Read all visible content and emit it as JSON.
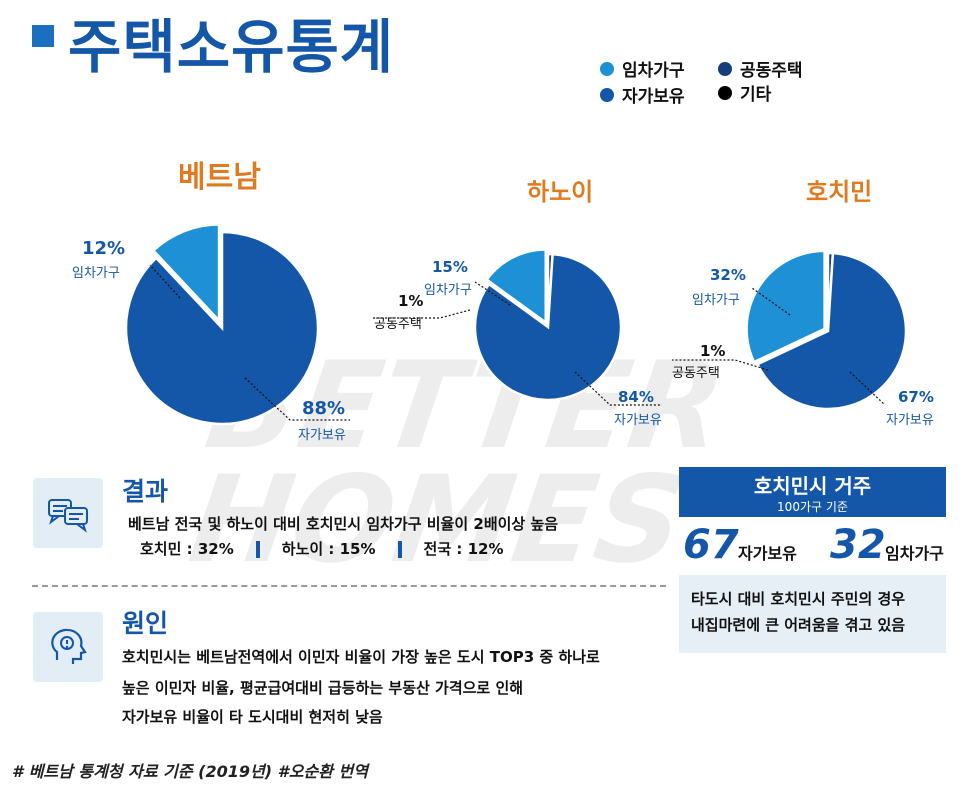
{
  "title": "주택소유통계",
  "legend": [
    {
      "label": "임차가구",
      "color": "#1e90d6"
    },
    {
      "label": "자가보유",
      "color": "#1457a8"
    },
    {
      "label": "공동주택",
      "color": "#123f7a"
    },
    {
      "label": "기타",
      "color": "#000000"
    }
  ],
  "chart_data": [
    {
      "type": "pie",
      "title": "베트남",
      "slices": [
        {
          "label": "임차가구",
          "value": 12,
          "value_label": "12%",
          "color": "#1e90d6"
        },
        {
          "label": "자가보유",
          "value": 88,
          "value_label": "88%",
          "color": "#1457a8"
        }
      ]
    },
    {
      "type": "pie",
      "title": "하노이",
      "slices": [
        {
          "label": "임차가구",
          "value": 15,
          "value_label": "15%",
          "color": "#1e90d6"
        },
        {
          "label": "공동주택",
          "value": 1,
          "value_label": "1%",
          "color": "#123f7a"
        },
        {
          "label": "자가보유",
          "value": 84,
          "value_label": "84%",
          "color": "#1457a8"
        }
      ]
    },
    {
      "type": "pie",
      "title": "호치민",
      "slices": [
        {
          "label": "임차가구",
          "value": 32,
          "value_label": "32%",
          "color": "#1e90d6"
        },
        {
          "label": "공동주택",
          "value": 1,
          "value_label": "1%",
          "color": "#123f7a"
        },
        {
          "label": "자가보유",
          "value": 67,
          "value_label": "67%",
          "color": "#1457a8"
        }
      ]
    }
  ],
  "watermark": {
    "line1": "BETTER",
    "line2": "HOMES"
  },
  "result": {
    "heading": "결과",
    "line1": "베트남 전국 및 하노이 대비 호치민시 임차가구 비율이 2배이상 높음",
    "stats": [
      {
        "label": "호치민 :",
        "value": "32%"
      },
      {
        "label": "하노이 :",
        "value": "15%"
      },
      {
        "label": "전국 :",
        "value": "12%"
      }
    ]
  },
  "cause": {
    "heading": "원인",
    "lines": [
      "호치민시는 베트남전역에서 이민자 비율이 가장 높은 도시 TOP3 중 하나로",
      "높은 이민자 비율,  평균급여대비 급등하는 부동산 가격으로 인해",
      "자가보유 비율이 타 도시대비 현저히 낮음"
    ]
  },
  "hcm": {
    "title": "호치민시 거주",
    "subtitle": "100가구 기준",
    "own_num": "67",
    "own_label": "자가보유",
    "rent_num": "32",
    "rent_label": "임차가구",
    "desc1": "타도시 대비 호치민시 주민의 경우",
    "desc2": "내집마련에 큰 어려움을 겪고 있음"
  },
  "footer": "# 베트남 통계청 자료 기준 (2019년) #오순환 번역"
}
